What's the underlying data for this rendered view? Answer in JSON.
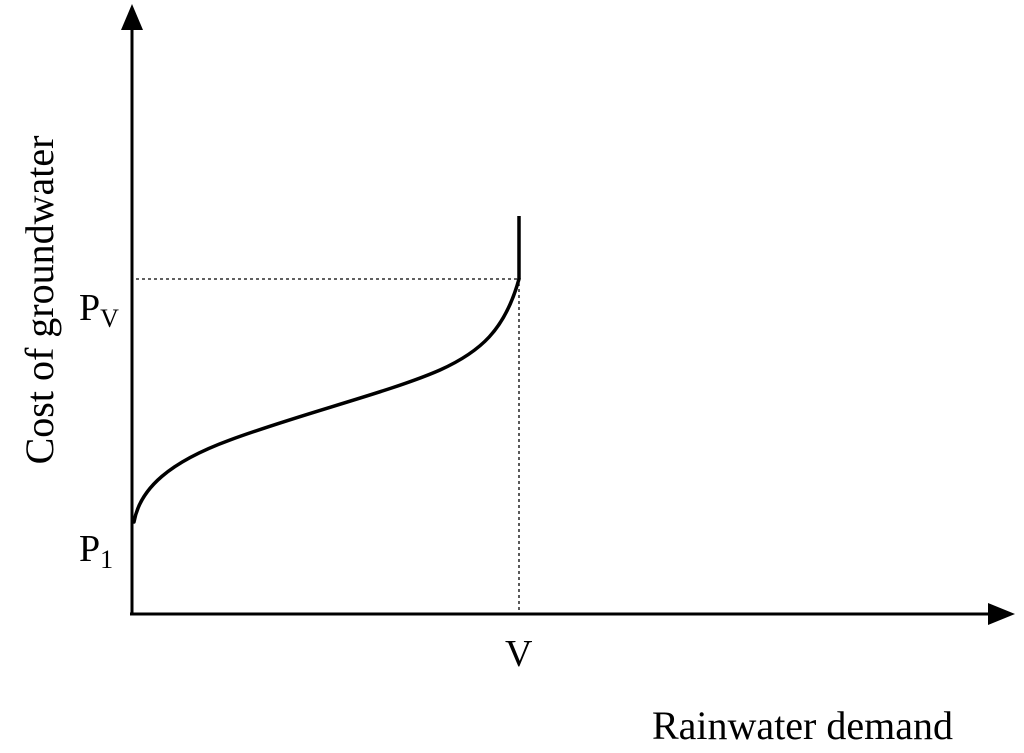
{
  "diagram": {
    "y_axis_label": "Cost of groundwater",
    "x_axis_label": "Rainwater demand",
    "labels": {
      "pv_main": "P",
      "pv_sub": "V",
      "p1_main": "P",
      "p1_sub": "1",
      "v": "V"
    },
    "colors": {
      "line": "#000000",
      "background": "#ffffff"
    }
  }
}
